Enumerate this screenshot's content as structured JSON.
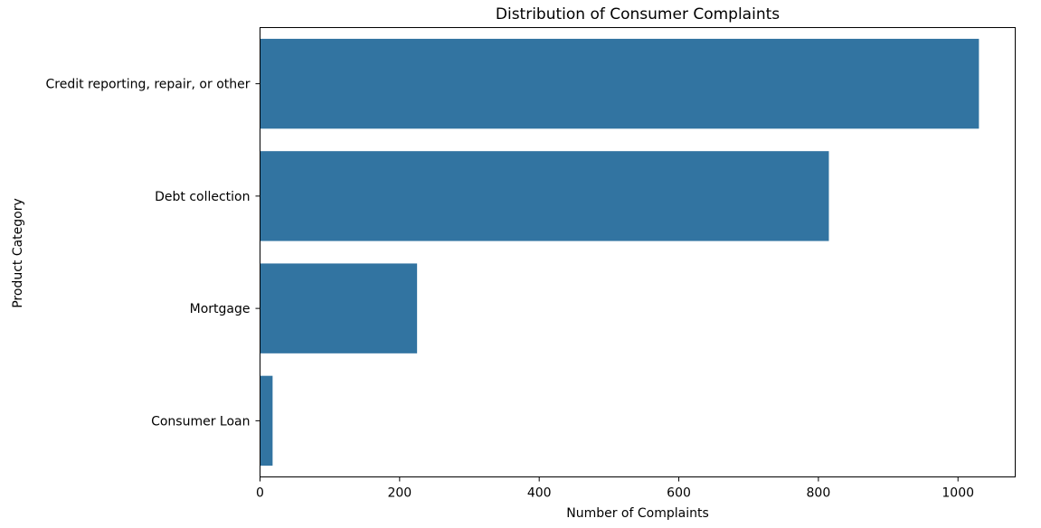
{
  "chart_data": {
    "type": "bar",
    "orientation": "horizontal",
    "title": "Distribution of Consumer Complaints",
    "xlabel": "Number of Complaints",
    "ylabel": "Product Category",
    "categories": [
      "Credit reporting, repair, or other",
      "Debt collection",
      "Mortgage",
      "Consumer Loan"
    ],
    "values": [
      1030,
      815,
      225,
      18
    ],
    "xlim": [
      0,
      1082
    ],
    "xticks": [
      0,
      200,
      400,
      600,
      800,
      1000
    ],
    "grid": false,
    "bar_color": "#3274a1"
  }
}
